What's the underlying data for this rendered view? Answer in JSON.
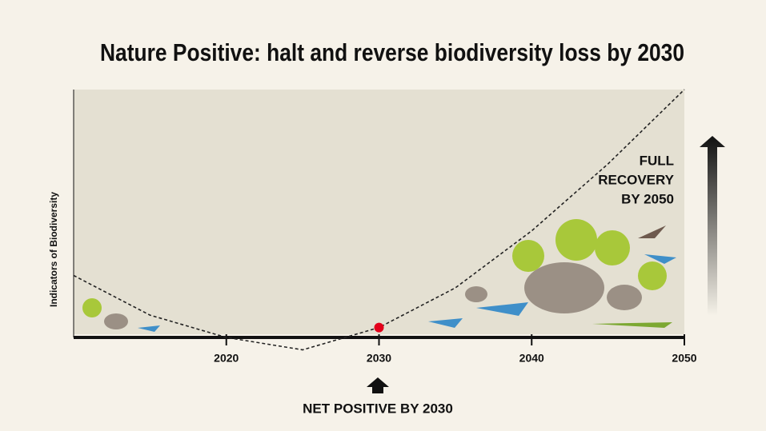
{
  "chart_data": {
    "type": "line",
    "title": "Nature Positive: halt and reverse biodiversity loss by 2030",
    "y_label": "Indicators of Biodiversity",
    "x": [
      2010,
      2015,
      2020,
      2025,
      2030,
      2035,
      2040,
      2045,
      2050
    ],
    "series": [
      {
        "color": "#222222",
        "values": [
          2.5,
          0.9,
          0,
          -0.5,
          0.4,
          2.0,
          4.3,
          7.0,
          10
        ]
      }
    ],
    "highlight": {
      "x": 2030,
      "y": 0.4,
      "color": "#e3001b"
    },
    "xlim": [
      2010,
      2050
    ],
    "ylim": [
      -1,
      10
    ],
    "xticks": [
      2020,
      2030,
      2040,
      2050
    ],
    "annotations": {
      "recovery": [
        "FULL",
        "RECOVERY",
        "BY 2050"
      ],
      "net_positive": "NET POSITIVE BY 2030"
    },
    "dashed": true
  }
}
